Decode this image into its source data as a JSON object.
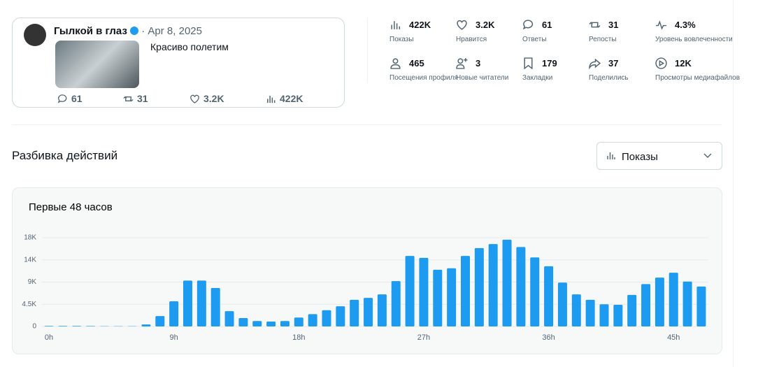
{
  "tweet": {
    "author": "Гылкой в глаз",
    "date": "Apr 8, 2025",
    "text": "Красиво полетим",
    "stats": {
      "replies": "61",
      "reposts": "31",
      "likes": "3.2K",
      "views": "422K"
    }
  },
  "metrics": [
    {
      "value": "422K",
      "label": "Показы"
    },
    {
      "value": "3.2K",
      "label": "Нравится"
    },
    {
      "value": "61",
      "label": "Ответы"
    },
    {
      "value": "31",
      "label": "Репосты"
    },
    {
      "value": "4.3%",
      "label": "Уровень вовлеченности"
    },
    {
      "value": "465",
      "label": "Посещения профиля"
    },
    {
      "value": "3",
      "label": "Новые читатели"
    },
    {
      "value": "179",
      "label": "Закладки"
    },
    {
      "value": "37",
      "label": "Поделились"
    },
    {
      "value": "12K",
      "label": "Просмотры медиафайлов"
    }
  ],
  "section_title": "Разбивка действий",
  "dropdown": "Показы",
  "chart_data": {
    "type": "bar",
    "title": "Первые 48 часов",
    "color": "#1d9bf0",
    "grid": true,
    "categories": [
      "0h",
      null,
      null,
      null,
      null,
      null,
      null,
      null,
      null,
      "9h",
      null,
      null,
      null,
      null,
      null,
      null,
      null,
      null,
      "18h",
      null,
      null,
      null,
      null,
      null,
      null,
      null,
      null,
      "27h",
      null,
      null,
      null,
      null,
      null,
      null,
      null,
      null,
      "36h",
      null,
      null,
      null,
      null,
      null,
      null,
      null,
      null,
      "45h",
      null,
      null
    ],
    "values": [
      100,
      100,
      100,
      80,
      50,
      50,
      50,
      400,
      2100,
      5100,
      9300,
      9300,
      7800,
      3100,
      1700,
      1100,
      1000,
      1100,
      1800,
      2500,
      3300,
      4100,
      5400,
      5800,
      6500,
      9200,
      14300,
      13900,
      11500,
      11800,
      14300,
      15900,
      16700,
      17600,
      16100,
      14000,
      12200,
      8900,
      6500,
      5400,
      4500,
      4400,
      6400,
      8600,
      9900,
      10900,
      9100,
      8100
    ],
    "ylim": [
      0,
      18000
    ],
    "yticks": [
      0,
      {
        "value": 4500,
        "label": "4.5K"
      },
      {
        "value": 9000,
        "label": "9K"
      },
      {
        "value": 13500,
        "label": "14K"
      },
      {
        "value": 18000,
        "label": "18K"
      }
    ]
  }
}
